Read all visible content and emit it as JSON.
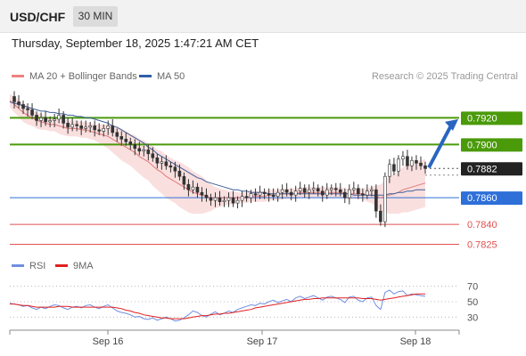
{
  "header": {
    "symbol": "USD/CHF",
    "timeframe": "30 MIN"
  },
  "datetime": "Thursday, September 18, 2025 1:47:21 AM CET",
  "legend": {
    "ma20": {
      "label": "MA 20 + Bollinger Bands",
      "color": "#f08080"
    },
    "ma50": {
      "label": "MA 50",
      "color": "#2e5fa8"
    },
    "credit": "Research © 2025 Trading Central"
  },
  "rsi_legend": {
    "rsi": {
      "label": "RSI",
      "color": "#6f8fe0"
    },
    "ma9": {
      "label": "9MA",
      "color": "#e02020"
    }
  },
  "chart_data": {
    "type": "candlestick",
    "symbol": "USD/CHF",
    "timeframe": "30 MIN",
    "x_ticks": [
      "Sep 16",
      "Sep 17",
      "Sep 18"
    ],
    "price_range": [
      0.782,
      0.7943
    ],
    "last_price": 0.7882,
    "levels": [
      {
        "value": 0.792,
        "label": "0.7920",
        "type": "resistance",
        "color": "#4a9a0a"
      },
      {
        "value": 0.79,
        "label": "0.7900",
        "type": "resistance",
        "color": "#4a9a0a"
      },
      {
        "value": 0.7882,
        "label": "0.7882",
        "type": "last",
        "color": "#222222"
      },
      {
        "value": 0.786,
        "label": "0.7860",
        "type": "pivot",
        "color": "#2e6fd8"
      },
      {
        "value": 0.784,
        "label": "0.7840",
        "type": "support",
        "color": "#e05050"
      },
      {
        "value": 0.7825,
        "label": "0.7825",
        "type": "support",
        "color": "#e05050"
      }
    ],
    "target_arrow": {
      "from": 0.7882,
      "to": 0.7919
    },
    "price_path": [
      0.7936,
      0.7932,
      0.793,
      0.7927,
      0.7926,
      0.7922,
      0.7918,
      0.792,
      0.7917,
      0.7918,
      0.7919,
      0.7922,
      0.7916,
      0.7913,
      0.7915,
      0.7914,
      0.7912,
      0.7913,
      0.7914,
      0.7911,
      0.791,
      0.7912,
      0.7914,
      0.7909,
      0.7906,
      0.7904,
      0.7902,
      0.79,
      0.7897,
      0.7895,
      0.7896,
      0.7893,
      0.789,
      0.7886,
      0.7887,
      0.7884,
      0.7883,
      0.788,
      0.7876,
      0.787,
      0.7866,
      0.7868,
      0.7864,
      0.7862,
      0.786,
      0.7858,
      0.786,
      0.7857,
      0.7858,
      0.786,
      0.7856,
      0.7858,
      0.7861,
      0.786,
      0.7863,
      0.7862,
      0.7864,
      0.7863,
      0.7862,
      0.7861,
      0.7864,
      0.7866,
      0.7864,
      0.7862,
      0.7865,
      0.7867,
      0.7864,
      0.7866,
      0.7867,
      0.7865,
      0.7862,
      0.7866,
      0.7867,
      0.7866,
      0.7864,
      0.786,
      0.7866,
      0.7867,
      0.7863,
      0.7862,
      0.7865,
      0.7866,
      0.785,
      0.7842,
      0.7876,
      0.7885,
      0.788,
      0.7889,
      0.7891,
      0.7884,
      0.7888,
      0.7886,
      0.7884,
      0.7882
    ],
    "ma20": [
      0.7933,
      0.793,
      0.7927,
      0.7924,
      0.7922,
      0.792,
      0.7918,
      0.7917,
      0.7916,
      0.7915,
      0.7915,
      0.7914,
      0.7913,
      0.7912,
      0.7912,
      0.7912,
      0.7911,
      0.7911,
      0.791,
      0.7909,
      0.7908,
      0.7907,
      0.7906,
      0.7904,
      0.7902,
      0.79,
      0.7898,
      0.7896,
      0.7894,
      0.7891,
      0.7889,
      0.7887,
      0.7884,
      0.7881,
      0.7879,
      0.7876,
      0.7874,
      0.7872,
      0.787,
      0.7868,
      0.7866,
      0.7864,
      0.7863,
      0.7862,
      0.7861,
      0.786,
      0.786,
      0.786,
      0.786,
      0.786,
      0.786,
      0.786,
      0.786,
      0.786,
      0.7861,
      0.7861,
      0.7861,
      0.7861,
      0.7862,
      0.7862,
      0.7862,
      0.7863,
      0.7863,
      0.7863,
      0.7863,
      0.7864,
      0.7864,
      0.7864,
      0.7864,
      0.7864,
      0.7864,
      0.7864,
      0.7864,
      0.7864,
      0.7864,
      0.7863,
      0.7863,
      0.7863,
      0.7863,
      0.7863,
      0.7862,
      0.7862,
      0.7861,
      0.786,
      0.7861,
      0.7862,
      0.7863,
      0.7864,
      0.7866,
      0.7867,
      0.7868,
      0.7869,
      0.787,
      0.7871
    ],
    "band_width": [
      0.0005,
      0.0006,
      0.0006,
      0.0007,
      0.0007,
      0.0006,
      0.0006,
      0.0006,
      0.0005,
      0.0005,
      0.0005,
      0.0006,
      0.0006,
      0.0006,
      0.0006,
      0.0006,
      0.0006,
      0.0006,
      0.0006,
      0.0006,
      0.0007,
      0.0008,
      0.0009,
      0.001,
      0.0011,
      0.0012,
      0.0012,
      0.0012,
      0.0013,
      0.0013,
      0.0014,
      0.0014,
      0.0015,
      0.0015,
      0.0016,
      0.0016,
      0.0016,
      0.0016,
      0.0017,
      0.0017,
      0.0017,
      0.0016,
      0.0015,
      0.0014,
      0.0012,
      0.001,
      0.0008,
      0.0007,
      0.0006,
      0.0005,
      0.0005,
      0.0004,
      0.0004,
      0.0004,
      0.0004,
      0.0004,
      0.0004,
      0.0004,
      0.0004,
      0.0004,
      0.0004,
      0.0004,
      0.0004,
      0.0004,
      0.0004,
      0.0004,
      0.0004,
      0.0004,
      0.0004,
      0.0004,
      0.0004,
      0.0004,
      0.0004,
      0.0004,
      0.0004,
      0.0004,
      0.0004,
      0.0004,
      0.0004,
      0.0004,
      0.0005,
      0.0006,
      0.0008,
      0.001,
      0.0012,
      0.0014,
      0.0015,
      0.0016,
      0.0017,
      0.0018,
      0.0018,
      0.0018,
      0.0018,
      0.0018
    ],
    "ma50": [
      0.7932,
      0.7931,
      0.793,
      0.7929,
      0.7928,
      0.7927,
      0.7926,
      0.7925,
      0.7925,
      0.7924,
      0.7924,
      0.7923,
      0.7923,
      0.7922,
      0.7922,
      0.7921,
      0.7921,
      0.792,
      0.792,
      0.7919,
      0.7918,
      0.7917,
      0.7916,
      0.7914,
      0.7913,
      0.7911,
      0.7909,
      0.7907,
      0.7905,
      0.7903,
      0.7901,
      0.7898,
      0.7896,
      0.7893,
      0.7891,
      0.7889,
      0.7887,
      0.7885,
      0.7883,
      0.7881,
      0.7879,
      0.7877,
      0.7875,
      0.7874,
      0.7872,
      0.7871,
      0.787,
      0.7869,
      0.7868,
      0.7867,
      0.7866,
      0.7866,
      0.7865,
      0.7865,
      0.7864,
      0.7864,
      0.7864,
      0.7864,
      0.7863,
      0.7863,
      0.7863,
      0.7863,
      0.7863,
      0.7863,
      0.7863,
      0.7863,
      0.7863,
      0.7863,
      0.7863,
      0.7863,
      0.7863,
      0.7863,
      0.7863,
      0.7863,
      0.7863,
      0.7863,
      0.7863,
      0.7862,
      0.7862,
      0.7862,
      0.7862,
      0.7862,
      0.7862,
      0.7862,
      0.7862,
      0.7863,
      0.7863,
      0.7864,
      0.7864,
      0.7865,
      0.7865,
      0.7866,
      0.7866,
      0.7866
    ],
    "rsi": {
      "ticks": [
        70,
        50,
        30
      ],
      "range": [
        20,
        80
      ],
      "rsi": [
        48,
        47,
        46,
        44,
        45,
        42,
        40,
        43,
        41,
        44,
        46,
        45,
        42,
        40,
        43,
        44,
        42,
        45,
        46,
        43,
        41,
        44,
        46,
        42,
        38,
        36,
        35,
        33,
        30,
        31,
        28,
        27,
        29,
        26,
        28,
        30,
        28,
        25,
        26,
        29,
        33,
        38,
        36,
        32,
        30,
        34,
        37,
        33,
        35,
        38,
        36,
        40,
        42,
        44,
        46,
        45,
        48,
        47,
        50,
        52,
        49,
        51,
        53,
        50,
        55,
        57,
        54,
        56,
        58,
        55,
        52,
        56,
        57,
        55,
        53,
        49,
        56,
        57,
        52,
        50,
        55,
        56,
        45,
        40,
        62,
        65,
        60,
        63,
        64,
        58,
        60,
        59,
        58,
        57
      ],
      "ma9": [
        47,
        47,
        46,
        45,
        45,
        44,
        43,
        43,
        43,
        43,
        43,
        44,
        44,
        44,
        43,
        43,
        43,
        43,
        43,
        43,
        43,
        43,
        43,
        43,
        42,
        41,
        39,
        38,
        36,
        35,
        33,
        32,
        31,
        30,
        29,
        29,
        28,
        28,
        28,
        28,
        29,
        30,
        31,
        32,
        32,
        33,
        34,
        34,
        35,
        35,
        36,
        37,
        38,
        39,
        40,
        42,
        43,
        44,
        45,
        46,
        47,
        48,
        49,
        50,
        51,
        52,
        53,
        53,
        54,
        54,
        55,
        55,
        55,
        55,
        55,
        55,
        55,
        55,
        55,
        54,
        54,
        54,
        53,
        52,
        53,
        54,
        55,
        56,
        57,
        58,
        59,
        60,
        60,
        60
      ]
    }
  }
}
